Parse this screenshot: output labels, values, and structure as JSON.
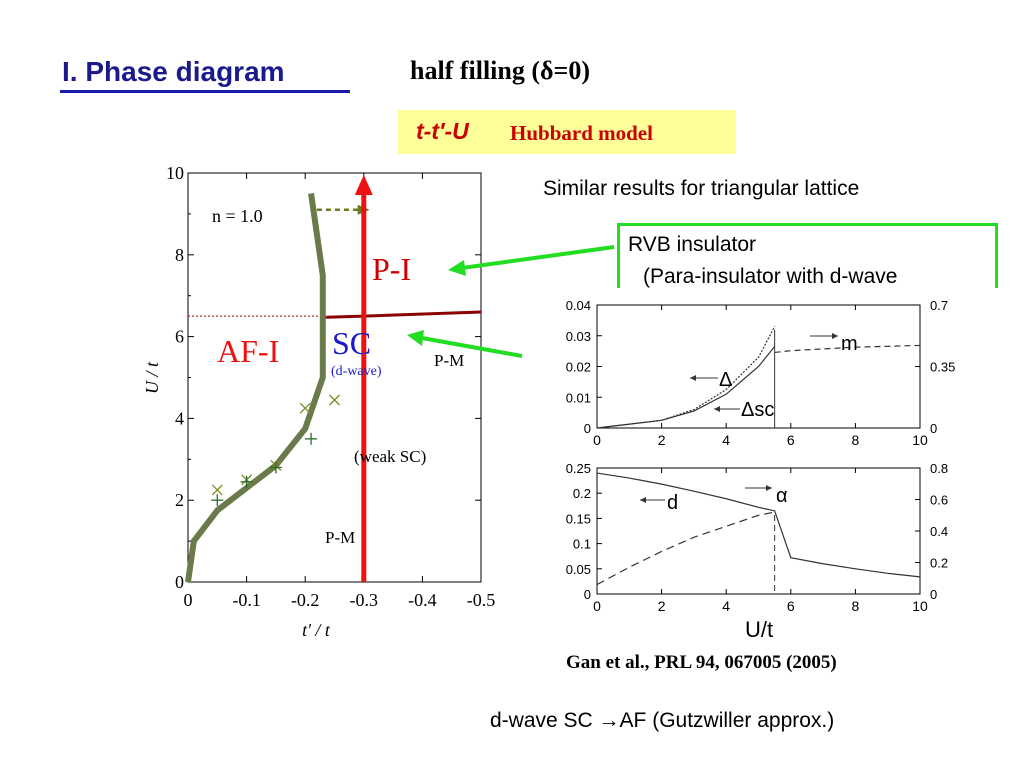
{
  "slide": {
    "title": "I. Phase diagram",
    "subtitle": "half filling  (δ=0)",
    "model_italic": "t-t′-U",
    "model_rest": "Hubbard model",
    "triangular_note": "Similar results for triangular lattice",
    "rvb_line1": "RVB insulator",
    "rvb_line2": "(Para-insulator with d-wave",
    "citation": "Gan et al., PRL 94, 067005 (2005)",
    "bottom_note": "d-wave SC →AF  (Gutzwiller approx.)",
    "colors": {
      "title": "#1a1a8c",
      "model_text": "#cc0000",
      "highlight": "#ffff99",
      "arrow_green": "#22dd22",
      "red_line": "#ee1111"
    }
  },
  "chart_data": [
    {
      "type": "phase-diagram",
      "xlabel": "t' / t",
      "ylabel": "U / t",
      "xlim": [
        0,
        -0.5
      ],
      "ylim": [
        0,
        10
      ],
      "x_ticks": [
        {
          "value": 0,
          "label": "0"
        },
        {
          "value": -0.1,
          "label": "-0.1"
        },
        {
          "value": -0.2,
          "label": "-0.2"
        },
        {
          "value": -0.3,
          "label": "-0.3"
        },
        {
          "value": -0.4,
          "label": "-0.4"
        },
        {
          "value": -0.5,
          "label": "-0.5"
        }
      ],
      "y_ticks": [
        {
          "value": 0,
          "label": "0"
        },
        {
          "value": 2,
          "label": "2"
        },
        {
          "value": 4,
          "label": "4"
        },
        {
          "value": 6,
          "label": "6"
        },
        {
          "value": 8,
          "label": "8"
        },
        {
          "value": 10,
          "label": "10"
        }
      ],
      "annotations": {
        "n_label": "n = 1.0",
        "pi": "P-I",
        "afi": "AF-I",
        "sc": "SC",
        "dwave": "(d-wave)",
        "pm_upper": "P-M",
        "weak_sc": "(weak SC)",
        "pm_lower": "P-M"
      },
      "af_boundary": [
        [
          0,
          0
        ],
        [
          -0.01,
          1
        ],
        [
          -0.05,
          1.75
        ],
        [
          -0.1,
          2.3
        ],
        [
          -0.15,
          2.85
        ],
        [
          -0.2,
          3.75
        ],
        [
          -0.23,
          5
        ],
        [
          -0.23,
          7.5
        ],
        [
          -0.21,
          9.5
        ]
      ],
      "pi_boundary": [
        [
          -0.23,
          6.47
        ],
        [
          -0.3,
          6.5
        ],
        [
          -0.5,
          6.6
        ]
      ],
      "dashed_level": 6.5,
      "dashed_arrow": [
        [
          -0.22,
          9.1
        ],
        [
          -0.31,
          9.1
        ]
      ],
      "red_line_x": -0.3,
      "x_markers": [
        [
          -0.05,
          2.25
        ],
        [
          -0.1,
          2.5
        ],
        [
          -0.15,
          2.85
        ],
        [
          -0.2,
          4.25
        ],
        [
          -0.25,
          4.45
        ]
      ],
      "plus_markers": [
        [
          -0.05,
          2.0
        ],
        [
          -0.1,
          2.45
        ],
        [
          -0.15,
          2.8
        ],
        [
          -0.21,
          3.5
        ]
      ]
    },
    {
      "type": "line",
      "xlim": [
        0,
        10
      ],
      "ylim": [
        0,
        0.04
      ],
      "ylim_right": [
        0,
        0.7
      ],
      "x_ticks": [
        "0",
        "2",
        "4",
        "6",
        "8",
        "10"
      ],
      "y_ticks": [
        "0",
        "0.01",
        "0.02",
        "0.03",
        "0.04"
      ],
      "y_ticks_right": [
        "0",
        "0.35",
        "0.7"
      ],
      "series": [
        {
          "name": "Δ",
          "x": [
            0,
            2,
            3,
            4,
            5,
            5.5
          ],
          "y": [
            0,
            0.0025,
            0.006,
            0.0125,
            0.023,
            0.033
          ]
        },
        {
          "name": "Δsc",
          "x": [
            0,
            2,
            3,
            4,
            5,
            5.5
          ],
          "y": [
            0,
            0.0025,
            0.0055,
            0.011,
            0.02,
            0.0265
          ]
        },
        {
          "name": "m",
          "axis": "right",
          "x": [
            5.5,
            6,
            7,
            8,
            9,
            10
          ],
          "y": [
            0.43,
            0.44,
            0.45,
            0.46,
            0.465,
            0.47
          ]
        }
      ]
    },
    {
      "type": "line",
      "xlim": [
        0,
        10
      ],
      "ylim": [
        0,
        0.25
      ],
      "ylim_right": [
        0,
        0.8
      ],
      "xlabel": "U/t",
      "x_ticks": [
        "0",
        "2",
        "4",
        "6",
        "8",
        "10"
      ],
      "y_ticks": [
        "0",
        "0.05",
        "0.1",
        "0.15",
        "0.2",
        "0.25"
      ],
      "y_ticks_right": [
        "0",
        "0.2",
        "0.4",
        "0.6",
        "0.8"
      ],
      "series": [
        {
          "name": "d",
          "x": [
            0,
            1,
            2,
            3,
            4,
            5,
            5.5,
            6,
            7,
            8,
            9,
            10
          ],
          "y": [
            0.24,
            0.23,
            0.218,
            0.204,
            0.189,
            0.172,
            0.165,
            0.072,
            0.06,
            0.05,
            0.041,
            0.034
          ]
        },
        {
          "name": "α",
          "axis": "right",
          "x": [
            0,
            1,
            2,
            3,
            4,
            5,
            5.5
          ],
          "y": [
            0.06,
            0.17,
            0.27,
            0.36,
            0.43,
            0.5,
            0.52
          ]
        }
      ]
    }
  ]
}
